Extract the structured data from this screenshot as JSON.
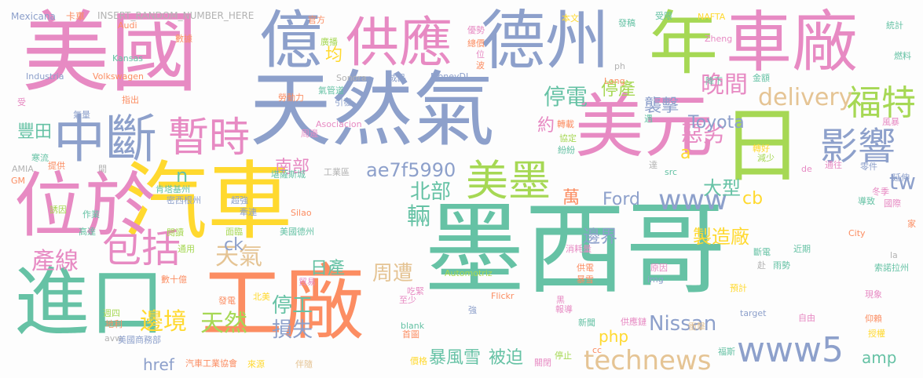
{
  "palette": {
    "teal": "#66c2a5",
    "orange": "#fc8d62",
    "blue": "#8da0cb",
    "pink": "#e78ac3",
    "lime": "#a6d854",
    "yellow": "#ffd92f",
    "tan": "#e5c494",
    "grey": "#b3b3b3"
  },
  "words": [
    {
      "text": "墨西哥",
      "color": "teal"
    },
    {
      "text": "天然氣",
      "color": "blue"
    },
    {
      "text": "美國",
      "color": "pink"
    },
    {
      "text": "汽車",
      "color": "yellow"
    },
    {
      "text": "美元",
      "color": "pink"
    },
    {
      "text": "車廠",
      "color": "pink"
    },
    {
      "text": "工廠",
      "color": "orange"
    },
    {
      "text": "位於",
      "color": "pink"
    },
    {
      "text": "進口",
      "color": "teal"
    },
    {
      "text": "億",
      "color": "blue"
    },
    {
      "text": "德州",
      "color": "blue"
    },
    {
      "text": "年",
      "color": "lime"
    },
    {
      "text": "日",
      "color": "lime"
    },
    {
      "text": "供應",
      "color": "pink"
    },
    {
      "text": "中斷",
      "color": "blue"
    },
    {
      "text": "暫時",
      "color": "pink"
    },
    {
      "text": "包括",
      "color": "pink"
    },
    {
      "text": "美墨",
      "color": "lime"
    },
    {
      "text": "影響",
      "color": "blue"
    },
    {
      "text": "福特",
      "color": "lime"
    },
    {
      "text": "www5",
      "color": "blue"
    },
    {
      "text": "technews",
      "color": "tan"
    },
    {
      "text": "www",
      "color": "blue"
    },
    {
      "text": "delivery",
      "color": "tan"
    },
    {
      "text": "晚間",
      "color": "pink"
    },
    {
      "text": "停電",
      "color": "teal"
    },
    {
      "text": "停產",
      "color": "lime"
    },
    {
      "text": "襲擊",
      "color": "blue"
    },
    {
      "text": "惡劣",
      "color": "pink"
    },
    {
      "text": "Toyota",
      "color": "blue"
    },
    {
      "text": "tw",
      "color": "blue"
    },
    {
      "text": "ae7f5990",
      "color": "blue"
    },
    {
      "text": "南部",
      "color": "pink"
    },
    {
      "text": "北部",
      "color": "teal"
    },
    {
      "text": "豐田",
      "color": "teal"
    },
    {
      "text": "產線",
      "color": "pink"
    },
    {
      "text": "天氣",
      "color": "tan"
    },
    {
      "text": "日產",
      "color": "teal"
    },
    {
      "text": "周遭",
      "color": "tan"
    },
    {
      "text": "ck",
      "color": "blue"
    },
    {
      "text": "輛",
      "color": "teal"
    },
    {
      "text": "約",
      "color": "pink"
    },
    {
      "text": "均",
      "color": "yellow"
    },
    {
      "text": "n",
      "color": "teal"
    },
    {
      "text": "萬",
      "color": "orange"
    },
    {
      "text": "Ford",
      "color": "blue"
    },
    {
      "text": "cb",
      "color": "yellow"
    },
    {
      "text": "大型",
      "color": "teal"
    },
    {
      "text": "邊界",
      "color": "blue"
    },
    {
      "text": "製造廠",
      "color": "yellow"
    },
    {
      "text": "Nissan",
      "color": "blue"
    },
    {
      "text": "邊境",
      "color": "yellow"
    },
    {
      "text": "天然",
      "color": "lime"
    },
    {
      "text": "停工",
      "color": "teal"
    },
    {
      "text": "損失",
      "color": "blue"
    },
    {
      "text": "暴風雪",
      "color": "teal"
    },
    {
      "text": "被迫",
      "color": "teal"
    },
    {
      "text": "php",
      "color": "yellow"
    },
    {
      "text": "href",
      "color": "blue"
    },
    {
      "text": "amp",
      "color": "teal"
    },
    {
      "text": "a",
      "color": "yellow"
    },
    {
      "text": "Mexicana",
      "color": "blue"
    },
    {
      "text": "卡車",
      "color": "orange"
    },
    {
      "text": "INSERT_RANDOM_NUMBER_HERE",
      "color": "grey"
    },
    {
      "text": "Audi",
      "color": "orange"
    },
    {
      "text": "官方",
      "color": "orange"
    },
    {
      "text": "數據",
      "color": "orange"
    },
    {
      "text": "廣播",
      "color": "lime"
    },
    {
      "text": "優勢",
      "color": "pink"
    },
    {
      "text": "總價",
      "color": "orange"
    },
    {
      "text": "位",
      "color": "pink"
    },
    {
      "text": "波",
      "color": "orange"
    },
    {
      "text": "本文",
      "color": "yellow"
    },
    {
      "text": "發稿",
      "color": "teal"
    },
    {
      "text": "受限",
      "color": "teal"
    },
    {
      "text": "NAFTA",
      "color": "yellow"
    },
    {
      "text": "統計",
      "color": "teal"
    },
    {
      "text": "Zheng",
      "color": "pink"
    },
    {
      "text": "燃料",
      "color": "teal"
    },
    {
      "text": "Kansas",
      "color": "teal"
    },
    {
      "text": "Industria",
      "color": "blue"
    },
    {
      "text": "Volkswagen",
      "color": "orange"
    },
    {
      "text": "Sonora",
      "color": "grey"
    },
    {
      "text": "成品",
      "color": "blue"
    },
    {
      "text": "MoneyDJ",
      "color": "blue"
    },
    {
      "text": "ph",
      "color": "grey"
    },
    {
      "text": "降下",
      "color": "teal"
    },
    {
      "text": "Long",
      "color": "orange"
    },
    {
      "text": "金額",
      "color": "teal"
    },
    {
      "text": "指出",
      "color": "orange"
    },
    {
      "text": "勞動力",
      "color": "orange"
    },
    {
      "text": "氣管道",
      "color": "teal"
    },
    {
      "text": "引發",
      "color": "blue"
    },
    {
      "text": "受",
      "color": "pink"
    },
    {
      "text": "氣量",
      "color": "blue"
    },
    {
      "text": "周邊",
      "color": "pink"
    },
    {
      "text": "Asociacion",
      "color": "pink"
    },
    {
      "text": "轉載",
      "color": "orange"
    },
    {
      "text": "協定",
      "color": "lime"
    },
    {
      "text": "遇",
      "color": "teal"
    },
    {
      "text": "紛紛",
      "color": "teal"
    },
    {
      "text": "轉好",
      "color": "yellow"
    },
    {
      "text": "風暴",
      "color": "pink"
    },
    {
      "text": "減少",
      "color": "lime"
    },
    {
      "text": "寒流",
      "color": "teal"
    },
    {
      "text": "提供",
      "color": "orange"
    },
    {
      "text": "AMIA",
      "color": "grey"
    },
    {
      "text": "間",
      "color": "grey"
    },
    {
      "text": "達",
      "color": "grey"
    },
    {
      "text": "工業區",
      "color": "grey"
    },
    {
      "text": "堪薩斯城",
      "color": "teal"
    },
    {
      "text": "肯塔基州",
      "color": "teal"
    },
    {
      "text": "GM",
      "color": "orange"
    },
    {
      "text": "de",
      "color": "pink"
    },
    {
      "text": "src",
      "color": "teal"
    },
    {
      "text": "通往",
      "color": "pink"
    },
    {
      "text": "零件",
      "color": "blue"
    },
    {
      "text": "延伸",
      "color": "blue"
    },
    {
      "text": "冬季",
      "color": "pink"
    },
    {
      "text": "導致",
      "color": "teal"
    },
    {
      "text": "國際",
      "color": "pink"
    },
    {
      "text": "超強",
      "color": "blue"
    },
    {
      "text": "牽連",
      "color": "blue"
    },
    {
      "text": "密西根州",
      "color": "blue"
    },
    {
      "text": "誘因",
      "color": "lime"
    },
    {
      "text": "作業",
      "color": "teal"
    },
    {
      "text": "Silao",
      "color": "orange"
    },
    {
      "text": "面臨",
      "color": "lime"
    },
    {
      "text": "美國德州",
      "color": "teal"
    },
    {
      "text": "高達",
      "color": "teal"
    },
    {
      "text": "閱讀",
      "color": "lime"
    },
    {
      "text": "通用",
      "color": "lime"
    },
    {
      "text": "數十億",
      "color": "orange"
    },
    {
      "text": "貿易",
      "color": "pink"
    },
    {
      "text": "發電",
      "color": "orange"
    },
    {
      "text": "北美",
      "color": "yellow"
    },
    {
      "text": "至少",
      "color": "pink"
    },
    {
      "text": "吃緊",
      "color": "pink"
    },
    {
      "text": "週四",
      "color": "lime"
    },
    {
      "text": "地利",
      "color": "orange"
    },
    {
      "text": "avw",
      "color": "grey"
    },
    {
      "text": "美國商務部",
      "color": "blue"
    },
    {
      "text": "來源",
      "color": "yellow"
    },
    {
      "text": "汽車工業協會",
      "color": "orange"
    },
    {
      "text": "伴隨",
      "color": "tan"
    },
    {
      "text": "首圖",
      "color": "orange"
    },
    {
      "text": "價格",
      "color": "yellow"
    },
    {
      "text": "blank",
      "color": "teal"
    },
    {
      "text": "Flickr",
      "color": "orange"
    },
    {
      "text": "Automotriz",
      "color": "lime"
    },
    {
      "text": "消耗量",
      "color": "pink"
    },
    {
      "text": "供電",
      "color": "orange"
    },
    {
      "text": "暴雪",
      "color": "orange"
    },
    {
      "text": "原因",
      "color": "pink"
    },
    {
      "text": "img",
      "color": "blue"
    },
    {
      "text": "預計",
      "color": "yellow"
    },
    {
      "text": "黑",
      "color": "pink"
    },
    {
      "text": "強",
      "color": "blue"
    },
    {
      "text": "報導",
      "color": "pink"
    },
    {
      "text": "新聞",
      "color": "teal"
    },
    {
      "text": "供應鏈",
      "color": "pink"
    },
    {
      "text": "衝擊",
      "color": "tan"
    },
    {
      "text": "cc",
      "color": "orange"
    },
    {
      "text": "停止",
      "color": "lime"
    },
    {
      "text": "關閉",
      "color": "pink"
    },
    {
      "text": "福斯",
      "color": "teal"
    },
    {
      "text": "target",
      "color": "blue"
    },
    {
      "text": "自由",
      "color": "pink"
    },
    {
      "text": "City",
      "color": "orange"
    },
    {
      "text": "近期",
      "color": "teal"
    },
    {
      "text": "la",
      "color": "grey"
    },
    {
      "text": "斷電",
      "color": "teal"
    },
    {
      "text": "赴",
      "color": "grey"
    },
    {
      "text": "雨勢",
      "color": "teal"
    },
    {
      "text": "索諾拉州",
      "color": "teal"
    },
    {
      "text": "仰賴",
      "color": "orange"
    },
    {
      "text": "現象",
      "color": "pink"
    },
    {
      "text": "家",
      "color": "orange"
    },
    {
      "text": "授權",
      "color": "yellow"
    }
  ]
}
